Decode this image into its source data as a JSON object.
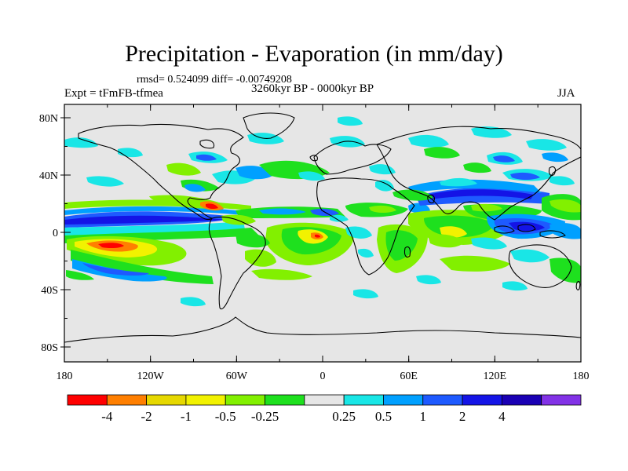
{
  "title": "Precipitation - Evaporation (in mm/day)",
  "stats": "rmsd= 0.524099 diff= -0.00749208",
  "experiment": "Expt = tFmFB-tfmea",
  "period": "3260kyr BP - 0000kyr BP",
  "season": "JJA",
  "axes": {
    "y_ticks": [
      {
        "label": "80N",
        "value": 80
      },
      {
        "label": "40N",
        "value": 40
      },
      {
        "label": "0",
        "value": 0
      },
      {
        "label": "40S",
        "value": -40
      },
      {
        "label": "80S",
        "value": -80
      }
    ],
    "x_ticks": [
      {
        "label": "180",
        "value": -180
      },
      {
        "label": "120W",
        "value": -120
      },
      {
        "label": "60W",
        "value": -60
      },
      {
        "label": "0",
        "value": 0
      },
      {
        "label": "60E",
        "value": 60
      },
      {
        "label": "120E",
        "value": 120
      },
      {
        "label": "180",
        "value": 180
      }
    ]
  },
  "colorbar": {
    "colors": [
      "#ff0000",
      "#ff7f00",
      "#e6d800",
      "#f2f200",
      "#82f000",
      "#1ee01e",
      "#e6e6e6",
      "#19e6e6",
      "#00a0ff",
      "#1e5aff",
      "#1414e6",
      "#1a00b4",
      "#8232e6"
    ],
    "labels": [
      "-4",
      "-2",
      "-1",
      "-0.5",
      "-0.25",
      "0.25",
      "0.5",
      "1",
      "2",
      "4"
    ]
  }
}
